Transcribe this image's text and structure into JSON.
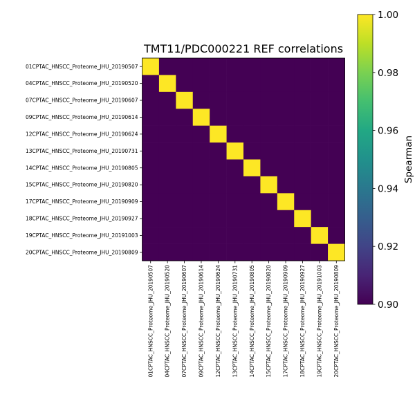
{
  "chart_data": {
    "type": "heatmap",
    "title": "TMT11/PDC000221 REF correlations",
    "row_labels": [
      "01CPTAC_HNSCC_Proteome_JHU_20190507",
      "04CPTAC_HNSCC_Proteome_JHU_20190520",
      "07CPTAC_HNSCC_Proteome_JHU_20190607",
      "09CPTAC_HNSCC_Proteome_JHU_20190614",
      "12CPTAC_HNSCC_Proteome_JHU_20190624",
      "13CPTAC_HNSCC_Proteome_JHU_20190731",
      "14CPTAC_HNSCC_Proteome_JHU_20190805",
      "15CPTAC_HNSCC_Proteome_JHU_20190820",
      "17CPTAC_HNSCC_Proteome_JHU_20190909",
      "18CPTAC_HNSCC_Proteome_JHU_20190927",
      "19CPTAC_HNSCC_Proteome_JHU_20191003",
      "20CPTAC_HNSCC_Proteome_JHU_20190809"
    ],
    "col_labels": [
      "01CPTAC_HNSCC_Proteome_JHU_20190507",
      "04CPTAC_HNSCC_Proteome_JHU_20190520",
      "07CPTAC_HNSCC_Proteome_JHU_20190607",
      "09CPTAC_HNSCC_Proteome_JHU_20190614",
      "12CPTAC_HNSCC_Proteome_JHU_20190624",
      "13CPTAC_HNSCC_Proteome_JHU_20190731",
      "14CPTAC_HNSCC_Proteome_JHU_20190805",
      "15CPTAC_HNSCC_Proteome_JHU_20190820",
      "17CPTAC_HNSCC_Proteome_JHU_20190909",
      "18CPTAC_HNSCC_Proteome_JHU_20190927",
      "19CPTAC_HNSCC_Proteome_JHU_20191003",
      "20CPTAC_HNSCC_Proteome_JHU_20190809"
    ],
    "values": [
      [
        1.0,
        0.9,
        0.9,
        0.9,
        0.9,
        0.9,
        0.9,
        0.9,
        0.9,
        0.9,
        0.9,
        0.9
      ],
      [
        0.9,
        1.0,
        0.9,
        0.9,
        0.9,
        0.9,
        0.9,
        0.9,
        0.9,
        0.9,
        0.9,
        0.9
      ],
      [
        0.9,
        0.9,
        1.0,
        0.9,
        0.9,
        0.9,
        0.9,
        0.9,
        0.9,
        0.9,
        0.9,
        0.9
      ],
      [
        0.9,
        0.9,
        0.9,
        1.0,
        0.9,
        0.9,
        0.9,
        0.9,
        0.9,
        0.9,
        0.9,
        0.9
      ],
      [
        0.9,
        0.9,
        0.9,
        0.9,
        1.0,
        0.9,
        0.9,
        0.9,
        0.9,
        0.9,
        0.9,
        0.9
      ],
      [
        0.9,
        0.9,
        0.9,
        0.9,
        0.9,
        1.0,
        0.9,
        0.9,
        0.9,
        0.9,
        0.9,
        0.9
      ],
      [
        0.9,
        0.9,
        0.9,
        0.9,
        0.9,
        0.9,
        1.0,
        0.9,
        0.9,
        0.9,
        0.9,
        0.9
      ],
      [
        0.9,
        0.9,
        0.9,
        0.9,
        0.9,
        0.9,
        0.9,
        1.0,
        0.9,
        0.9,
        0.9,
        0.9
      ],
      [
        0.9,
        0.9,
        0.9,
        0.9,
        0.9,
        0.9,
        0.9,
        0.9,
        1.0,
        0.9,
        0.9,
        0.9
      ],
      [
        0.9,
        0.9,
        0.9,
        0.9,
        0.9,
        0.9,
        0.9,
        0.9,
        0.9,
        1.0,
        0.9,
        0.9
      ],
      [
        0.9,
        0.9,
        0.9,
        0.9,
        0.9,
        0.9,
        0.9,
        0.9,
        0.9,
        0.9,
        1.0,
        0.9
      ],
      [
        0.9,
        0.9,
        0.9,
        0.9,
        0.9,
        0.9,
        0.9,
        0.9,
        0.9,
        0.9,
        0.9,
        1.0
      ]
    ],
    "colormap": "viridis",
    "vmin": 0.9,
    "vmax": 1.0,
    "colorbar": {
      "label": "Spearman",
      "ticks": [
        "0.90",
        "0.92",
        "0.94",
        "0.96",
        "0.98",
        "1.00"
      ],
      "tick_values": [
        0.9,
        0.92,
        0.94,
        0.96,
        0.98,
        1.0
      ]
    },
    "grid": false
  }
}
